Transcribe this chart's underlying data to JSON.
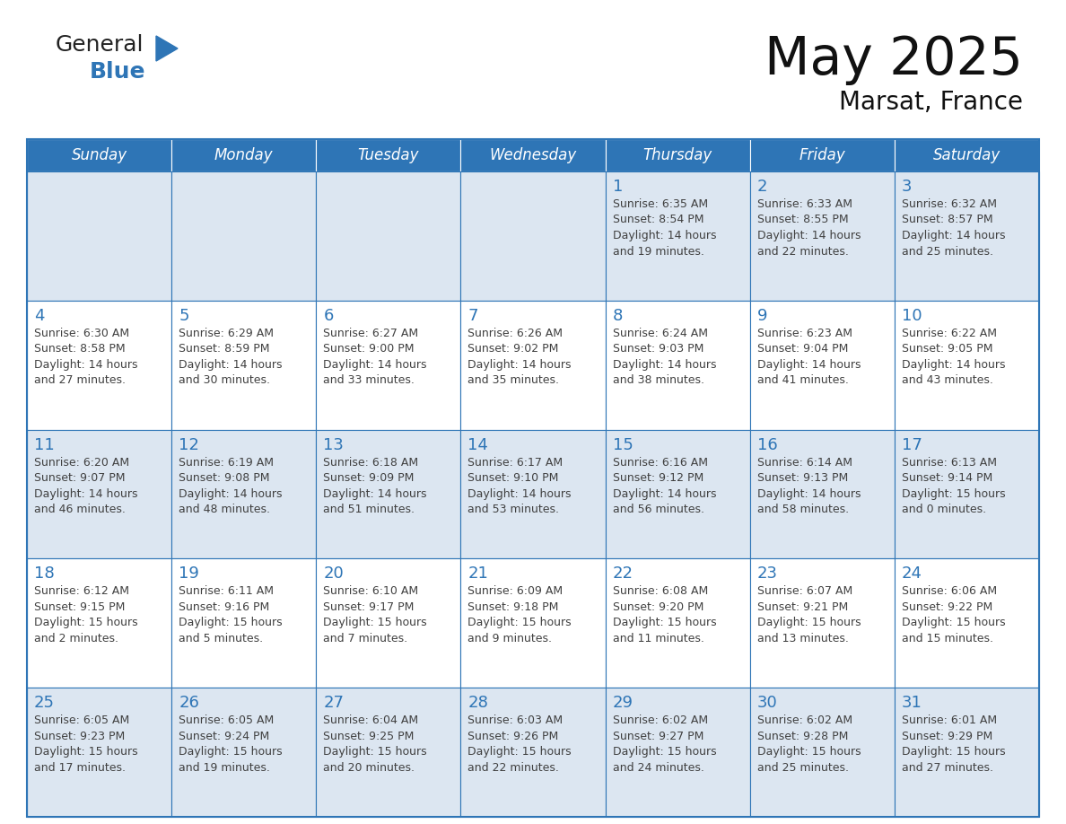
{
  "title": "May 2025",
  "subtitle": "Marsat, France",
  "days_of_week": [
    "Sunday",
    "Monday",
    "Tuesday",
    "Wednesday",
    "Thursday",
    "Friday",
    "Saturday"
  ],
  "header_bg": "#2E75B6",
  "header_text": "#FFFFFF",
  "cell_bg_light": "#DCE6F1",
  "cell_bg_white": "#FFFFFF",
  "day_num_color": "#2E75B6",
  "text_color": "#404040",
  "border_color": "#2E75B6",
  "logo_general_color": "#222222",
  "logo_blue_color": "#2E75B6",
  "calendar_data": [
    [
      "",
      "",
      "",
      "",
      "1\nSunrise: 6:35 AM\nSunset: 8:54 PM\nDaylight: 14 hours\nand 19 minutes.",
      "2\nSunrise: 6:33 AM\nSunset: 8:55 PM\nDaylight: 14 hours\nand 22 minutes.",
      "3\nSunrise: 6:32 AM\nSunset: 8:57 PM\nDaylight: 14 hours\nand 25 minutes."
    ],
    [
      "4\nSunrise: 6:30 AM\nSunset: 8:58 PM\nDaylight: 14 hours\nand 27 minutes.",
      "5\nSunrise: 6:29 AM\nSunset: 8:59 PM\nDaylight: 14 hours\nand 30 minutes.",
      "6\nSunrise: 6:27 AM\nSunset: 9:00 PM\nDaylight: 14 hours\nand 33 minutes.",
      "7\nSunrise: 6:26 AM\nSunset: 9:02 PM\nDaylight: 14 hours\nand 35 minutes.",
      "8\nSunrise: 6:24 AM\nSunset: 9:03 PM\nDaylight: 14 hours\nand 38 minutes.",
      "9\nSunrise: 6:23 AM\nSunset: 9:04 PM\nDaylight: 14 hours\nand 41 minutes.",
      "10\nSunrise: 6:22 AM\nSunset: 9:05 PM\nDaylight: 14 hours\nand 43 minutes."
    ],
    [
      "11\nSunrise: 6:20 AM\nSunset: 9:07 PM\nDaylight: 14 hours\nand 46 minutes.",
      "12\nSunrise: 6:19 AM\nSunset: 9:08 PM\nDaylight: 14 hours\nand 48 minutes.",
      "13\nSunrise: 6:18 AM\nSunset: 9:09 PM\nDaylight: 14 hours\nand 51 minutes.",
      "14\nSunrise: 6:17 AM\nSunset: 9:10 PM\nDaylight: 14 hours\nand 53 minutes.",
      "15\nSunrise: 6:16 AM\nSunset: 9:12 PM\nDaylight: 14 hours\nand 56 minutes.",
      "16\nSunrise: 6:14 AM\nSunset: 9:13 PM\nDaylight: 14 hours\nand 58 minutes.",
      "17\nSunrise: 6:13 AM\nSunset: 9:14 PM\nDaylight: 15 hours\nand 0 minutes."
    ],
    [
      "18\nSunrise: 6:12 AM\nSunset: 9:15 PM\nDaylight: 15 hours\nand 2 minutes.",
      "19\nSunrise: 6:11 AM\nSunset: 9:16 PM\nDaylight: 15 hours\nand 5 minutes.",
      "20\nSunrise: 6:10 AM\nSunset: 9:17 PM\nDaylight: 15 hours\nand 7 minutes.",
      "21\nSunrise: 6:09 AM\nSunset: 9:18 PM\nDaylight: 15 hours\nand 9 minutes.",
      "22\nSunrise: 6:08 AM\nSunset: 9:20 PM\nDaylight: 15 hours\nand 11 minutes.",
      "23\nSunrise: 6:07 AM\nSunset: 9:21 PM\nDaylight: 15 hours\nand 13 minutes.",
      "24\nSunrise: 6:06 AM\nSunset: 9:22 PM\nDaylight: 15 hours\nand 15 minutes."
    ],
    [
      "25\nSunrise: 6:05 AM\nSunset: 9:23 PM\nDaylight: 15 hours\nand 17 minutes.",
      "26\nSunrise: 6:05 AM\nSunset: 9:24 PM\nDaylight: 15 hours\nand 19 minutes.",
      "27\nSunrise: 6:04 AM\nSunset: 9:25 PM\nDaylight: 15 hours\nand 20 minutes.",
      "28\nSunrise: 6:03 AM\nSunset: 9:26 PM\nDaylight: 15 hours\nand 22 minutes.",
      "29\nSunrise: 6:02 AM\nSunset: 9:27 PM\nDaylight: 15 hours\nand 24 minutes.",
      "30\nSunrise: 6:02 AM\nSunset: 9:28 PM\nDaylight: 15 hours\nand 25 minutes.",
      "31\nSunrise: 6:01 AM\nSunset: 9:29 PM\nDaylight: 15 hours\nand 27 minutes."
    ]
  ]
}
